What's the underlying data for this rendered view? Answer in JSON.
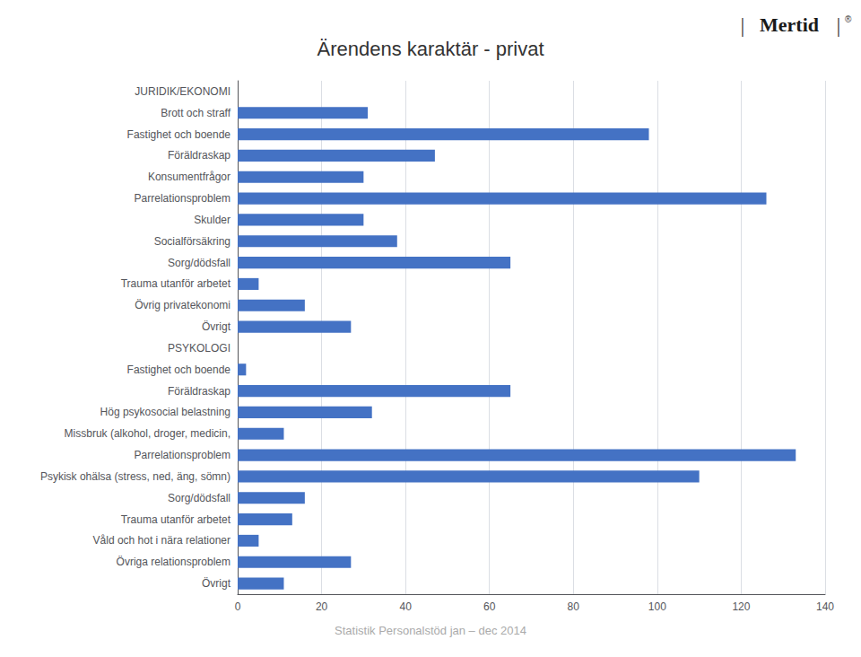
{
  "chart_data": {
    "type": "bar",
    "orientation": "horizontal",
    "title": "Ärendens karaktär - privat",
    "subtitle": "Statistik Personalstöd jan – dec 2014",
    "annotations": [
      "|",
      "Mertid",
      "|",
      "®"
    ],
    "categories": [
      "JURIDIK/EKONOMI",
      "Brott och straff",
      "Fastighet och boende",
      "Föräldraskap",
      "Konsumentfrågor",
      "Parrelationsproblem",
      "Skulder",
      "Socialförsäkring",
      "Sorg/dödsfall",
      "Trauma utanför arbetet",
      "Övrig privatekonomi",
      "Övrigt",
      "PSYKOLOGI",
      "Fastighet och boende",
      "Föräldraskap",
      "Hög psykosocial belastning",
      "Missbruk (alkohol, droger, medicin,",
      "Parrelationsproblem",
      "Psykisk ohälsa (stress, ned, äng, sömn)",
      "Sorg/dödsfall",
      "Trauma utanför arbetet",
      "Våld och hot i nära relationer",
      "Övriga relationsproblem",
      "Övrigt"
    ],
    "values": [
      0,
      31,
      98,
      47,
      30,
      126,
      30,
      38,
      65,
      5,
      16,
      27,
      0,
      2,
      65,
      32,
      11,
      133,
      110,
      16,
      13,
      5,
      27,
      11
    ],
    "color": "#4472C4",
    "xlim": [
      0,
      140
    ],
    "xticks": [
      0,
      20,
      40,
      60,
      80,
      100,
      120,
      140
    ],
    "grid": true
  }
}
